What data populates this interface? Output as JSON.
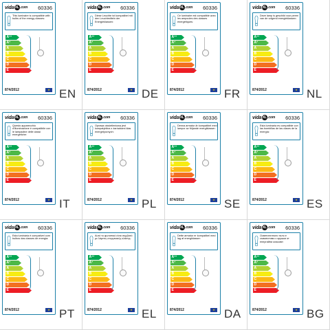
{
  "code": "60336",
  "regulation": "874/2012",
  "brand": {
    "prefix": "vida",
    "mark": "XL",
    "suffix": ".com"
  },
  "classes": [
    {
      "label": "A",
      "sup": "++",
      "color": "#00a651"
    },
    {
      "label": "A",
      "sup": "+",
      "color": "#4cb848"
    },
    {
      "label": "A",
      "sup": "",
      "color": "#b2d234"
    },
    {
      "label": "B",
      "sup": "",
      "color": "#f7ec13"
    },
    {
      "label": "C",
      "sup": "",
      "color": "#fcb814"
    },
    {
      "label": "D",
      "sup": "",
      "color": "#f36f21"
    },
    {
      "label": "E",
      "sup": "",
      "color": "#ed1c24"
    }
  ],
  "labels": [
    {
      "lang": "EN",
      "text": "This luminaire is compatible with bulbs of the energy classes:"
    },
    {
      "lang": "DE",
      "text": "Diese Leuchte ist kompatibel mit den Leuchtmitteln der Energieklassen:"
    },
    {
      "lang": "FR",
      "text": "Ce luminaire est compatible avec les ampoules des classes énergétiques:"
    },
    {
      "lang": "NL",
      "text": "Deze lamp is geschikt voor peren van de volgend energieklassen:"
    },
    {
      "lang": "IT",
      "text": "Questo apparecchio d'illuminazione è compatibile con le lampadine delle classi energetiche:"
    },
    {
      "lang": "PL",
      "text": "Oprawa oświetleniowa jest kompatybilna z żarówkami klas energetycznych:"
    },
    {
      "lang": "SE",
      "text": "Denna armatur är kompatibel med lampor av följande energiklasser:"
    },
    {
      "lang": "ES",
      "text": "Esta luminaria es compatible con las bombillas de las clases de la energía:"
    },
    {
      "lang": "PT",
      "text": "Esta luminária é compatível com bulbos das classes de energia:"
    },
    {
      "lang": "EL",
      "text": "Αυτό το φωτιστικό είναι συμβατό με λάμπες ενεργειακής κλάσης:"
    },
    {
      "lang": "DA",
      "text": "Dette armatur er kompatibel med lag af energiklasser:"
    },
    {
      "lang": "BG",
      "text": "Осветителното тяло е съвместимо с крушки от енергийни класове:"
    }
  ]
}
